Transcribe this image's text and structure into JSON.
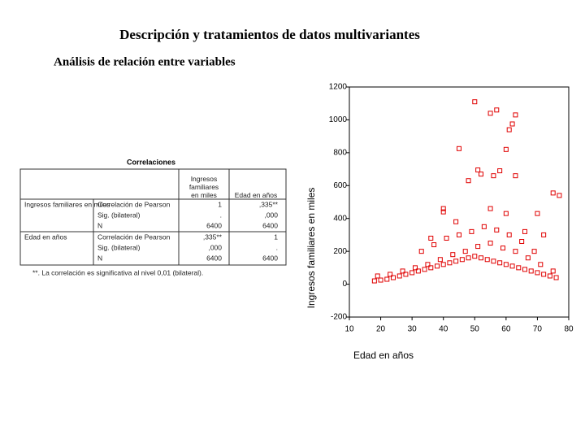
{
  "header": {
    "title": "Descripción y tratamientos de datos multivariantes",
    "subtitle": "Análisis de relación entre variables"
  },
  "table": {
    "title": "Correlaciones",
    "columns": [
      "Ingresos familiares en miles",
      "Edad en años"
    ],
    "groups": [
      {
        "label": "Ingresos familiares en miles",
        "rows": [
          {
            "stat": "Correlación de Pearson",
            "values": [
              "1",
              ",335**"
            ]
          },
          {
            "stat": "Sig. (bilateral)",
            "values": [
              ".",
              ",000"
            ]
          },
          {
            "stat": "N",
            "values": [
              "6400",
              "6400"
            ]
          }
        ]
      },
      {
        "label": "Edad en años",
        "rows": [
          {
            "stat": "Correlación de Pearson",
            "values": [
              ",335**",
              "1"
            ]
          },
          {
            "stat": "Sig. (bilateral)",
            "values": [
              ",000",
              "."
            ]
          },
          {
            "stat": "N",
            "values": [
              "6400",
              "6400"
            ]
          }
        ]
      }
    ],
    "footnote": "**. La correlación es significativa al nivel 0,01 (bilateral)."
  },
  "chart_data": {
    "type": "scatter",
    "x_label": "Edad en años",
    "y_label": "Ingresos familiares en miles",
    "color": "#e00000",
    "xlim": [
      10,
      80
    ],
    "xticks": [
      10,
      20,
      30,
      40,
      50,
      60,
      70,
      80
    ],
    "ylim": [
      -200,
      1200
    ],
    "yticks": [
      -200,
      0,
      200,
      400,
      600,
      800,
      1000,
      1200
    ],
    "x": [
      18,
      20,
      22,
      24,
      26,
      28,
      30,
      32,
      34,
      36,
      38,
      40,
      42,
      44,
      46,
      48,
      50,
      52,
      54,
      56,
      58,
      60,
      62,
      64,
      66,
      68,
      70,
      72,
      74,
      76,
      19,
      23,
      27,
      31,
      35,
      39,
      43,
      47,
      51,
      55,
      59,
      63,
      67,
      71,
      75,
      33,
      37,
      41,
      45,
      49,
      53,
      57,
      61,
      65,
      69,
      50,
      55,
      57,
      63,
      62,
      61,
      45,
      60,
      51,
      52,
      56,
      58,
      63,
      48,
      75,
      77,
      40,
      40,
      60,
      70,
      55,
      36,
      44,
      66,
      72
    ],
    "values": [
      20,
      25,
      30,
      40,
      50,
      60,
      70,
      80,
      90,
      100,
      110,
      120,
      130,
      140,
      150,
      160,
      170,
      160,
      150,
      140,
      130,
      120,
      110,
      100,
      90,
      80,
      70,
      60,
      50,
      40,
      50,
      60,
      80,
      100,
      120,
      150,
      180,
      200,
      230,
      250,
      220,
      200,
      160,
      120,
      80,
      200,
      240,
      280,
      300,
      320,
      350,
      330,
      300,
      260,
      200,
      1110,
      1040,
      1060,
      1030,
      975,
      940,
      825,
      820,
      695,
      670,
      660,
      690,
      660,
      630,
      555,
      540,
      440,
      460,
      430,
      430,
      460,
      280,
      380,
      320,
      300
    ]
  }
}
